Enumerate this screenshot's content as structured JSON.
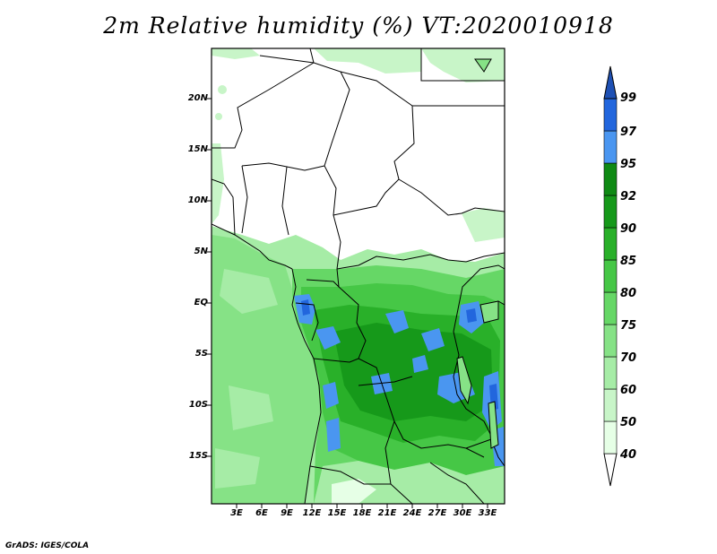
{
  "title": "2m Relative humidity (%) VT:2020010918",
  "credit": "GrADS: IGES/COLA",
  "map": {
    "variable": "2m Relative humidity",
    "units": "%",
    "valid_time": "2020010918",
    "lat_labels": [
      "20N",
      "15N",
      "10N",
      "5N",
      "EQ",
      "5S",
      "10S",
      "15S"
    ],
    "lon_labels": [
      "3E",
      "6E",
      "9E",
      "12E",
      "15E",
      "18E",
      "21E",
      "24E",
      "27E",
      "30E",
      "33E"
    ]
  },
  "colorbar": {
    "levels": [
      "40",
      "50",
      "60",
      "70",
      "75",
      "80",
      "85",
      "90",
      "92",
      "95",
      "97",
      "99"
    ],
    "colors": [
      "#ffffff",
      "#e6ffe6",
      "#c8f5c8",
      "#a6eca6",
      "#86e286",
      "#66d766",
      "#46c746",
      "#29b029",
      "#16991a",
      "#0f8a14",
      "#4a96f0",
      "#2266dd",
      "#1e50b4"
    ]
  }
}
